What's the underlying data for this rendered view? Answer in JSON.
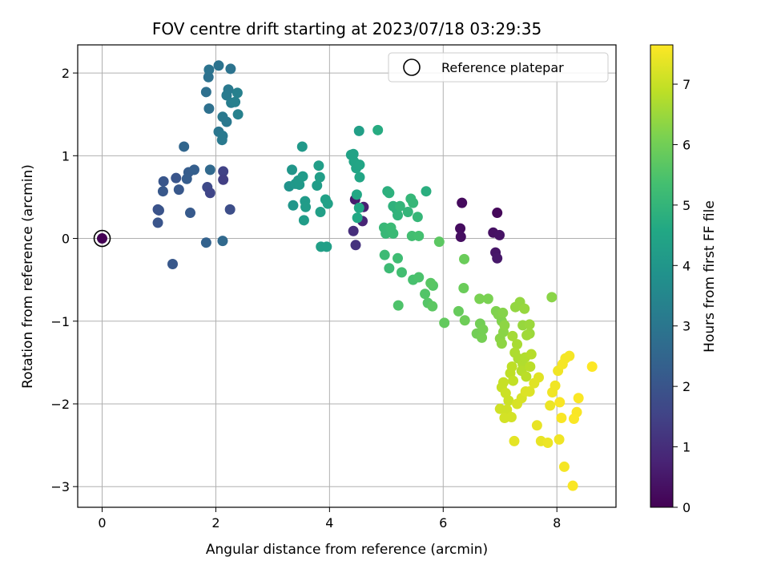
{
  "chart_data": {
    "type": "scatter",
    "title": "FOV centre drift starting at 2023/07/18 03:29:35",
    "xlabel": "Angular distance from reference (arcmin)",
    "ylabel": "Rotation from reference (arcmin)",
    "xlim": [
      -0.43,
      9.04
    ],
    "ylim": [
      -3.25,
      2.34
    ],
    "xticks": [
      0,
      2,
      4,
      6,
      8
    ],
    "yticks": [
      -3,
      -2,
      -1,
      0,
      1,
      2
    ],
    "grid": true,
    "legend": {
      "position": "top-right",
      "entries": [
        "Reference platepar"
      ]
    },
    "reference_point": {
      "x": 0,
      "y": 0
    },
    "colorbar": {
      "label": "Hours from first FF file",
      "range": [
        0,
        7.65
      ],
      "ticks": [
        0,
        1,
        2,
        3,
        4,
        5,
        6,
        7
      ],
      "colormap": "viridis"
    },
    "points": [
      {
        "x": 0.0,
        "y": 0.0,
        "c": 0.0
      },
      {
        "x": 6.33,
        "y": 0.43,
        "c": 0.2
      },
      {
        "x": 6.95,
        "y": 0.31,
        "c": 0.15
      },
      {
        "x": 6.3,
        "y": 0.12,
        "c": 0.25
      },
      {
        "x": 6.31,
        "y": 0.02,
        "c": 0.3
      },
      {
        "x": 6.88,
        "y": 0.07,
        "c": 0.35
      },
      {
        "x": 6.99,
        "y": 0.04,
        "c": 0.4
      },
      {
        "x": 6.92,
        "y": -0.17,
        "c": 0.45
      },
      {
        "x": 6.95,
        "y": -0.24,
        "c": 0.5
      },
      {
        "x": 4.45,
        "y": 0.47,
        "c": 0.6
      },
      {
        "x": 4.6,
        "y": 0.38,
        "c": 0.7
      },
      {
        "x": 4.58,
        "y": 0.21,
        "c": 0.8
      },
      {
        "x": 4.42,
        "y": 0.09,
        "c": 1.0
      },
      {
        "x": 4.46,
        "y": -0.08,
        "c": 1.1
      },
      {
        "x": 0.98,
        "y": 0.35,
        "c": 1.9
      },
      {
        "x": 1.0,
        "y": 0.34,
        "c": 1.95
      },
      {
        "x": 0.98,
        "y": 0.19,
        "c": 2.0
      },
      {
        "x": 1.08,
        "y": 0.69,
        "c": 2.05
      },
      {
        "x": 1.07,
        "y": 0.57,
        "c": 2.1
      },
      {
        "x": 1.3,
        "y": 0.73,
        "c": 2.0
      },
      {
        "x": 1.35,
        "y": 0.59,
        "c": 2.1
      },
      {
        "x": 1.24,
        "y": -0.31,
        "c": 2.1
      },
      {
        "x": 1.55,
        "y": 0.31,
        "c": 2.15
      },
      {
        "x": 1.52,
        "y": 0.8,
        "c": 2.2
      },
      {
        "x": 1.49,
        "y": 0.72,
        "c": 2.25
      },
      {
        "x": 1.62,
        "y": 0.83,
        "c": 2.3
      },
      {
        "x": 1.44,
        "y": 1.11,
        "c": 2.5
      },
      {
        "x": 1.83,
        "y": -0.05,
        "c": 2.4
      },
      {
        "x": 1.85,
        "y": 0.62,
        "c": 1.7
      },
      {
        "x": 1.9,
        "y": 0.55,
        "c": 1.6
      },
      {
        "x": 2.13,
        "y": 0.81,
        "c": 1.5
      },
      {
        "x": 2.13,
        "y": 0.71,
        "c": 1.4
      },
      {
        "x": 2.25,
        "y": 0.35,
        "c": 1.8
      },
      {
        "x": 2.12,
        "y": -0.03,
        "c": 2.6
      },
      {
        "x": 1.9,
        "y": 0.83,
        "c": 2.6
      },
      {
        "x": 1.88,
        "y": 1.57,
        "c": 2.8
      },
      {
        "x": 1.83,
        "y": 1.77,
        "c": 2.8
      },
      {
        "x": 1.87,
        "y": 1.95,
        "c": 2.85
      },
      {
        "x": 1.88,
        "y": 2.04,
        "c": 2.9
      },
      {
        "x": 2.05,
        "y": 2.09,
        "c": 2.9
      },
      {
        "x": 2.26,
        "y": 2.05,
        "c": 2.9
      },
      {
        "x": 2.05,
        "y": 1.29,
        "c": 3.0
      },
      {
        "x": 2.12,
        "y": 1.24,
        "c": 3.1
      },
      {
        "x": 2.11,
        "y": 1.19,
        "c": 3.1
      },
      {
        "x": 2.12,
        "y": 1.47,
        "c": 3.1
      },
      {
        "x": 2.19,
        "y": 1.41,
        "c": 3.05
      },
      {
        "x": 2.22,
        "y": 1.8,
        "c": 3.1
      },
      {
        "x": 2.19,
        "y": 1.73,
        "c": 3.15
      },
      {
        "x": 2.27,
        "y": 1.64,
        "c": 3.2
      },
      {
        "x": 2.34,
        "y": 1.65,
        "c": 3.3
      },
      {
        "x": 2.38,
        "y": 1.76,
        "c": 3.3
      },
      {
        "x": 2.39,
        "y": 1.5,
        "c": 3.35
      },
      {
        "x": 3.29,
        "y": 0.63,
        "c": 3.9
      },
      {
        "x": 3.34,
        "y": 0.83,
        "c": 4.0
      },
      {
        "x": 3.36,
        "y": 0.4,
        "c": 4.0
      },
      {
        "x": 3.4,
        "y": 0.66,
        "c": 4.05
      },
      {
        "x": 3.45,
        "y": 0.7,
        "c": 4.1
      },
      {
        "x": 3.47,
        "y": 0.65,
        "c": 4.1
      },
      {
        "x": 3.52,
        "y": 1.11,
        "c": 4.1
      },
      {
        "x": 3.53,
        "y": 0.75,
        "c": 4.15
      },
      {
        "x": 3.57,
        "y": 0.45,
        "c": 4.15
      },
      {
        "x": 3.58,
        "y": 0.38,
        "c": 4.2
      },
      {
        "x": 3.55,
        "y": 0.22,
        "c": 4.2
      },
      {
        "x": 3.78,
        "y": 0.64,
        "c": 4.2
      },
      {
        "x": 3.81,
        "y": 0.88,
        "c": 4.25
      },
      {
        "x": 3.83,
        "y": 0.74,
        "c": 4.25
      },
      {
        "x": 3.84,
        "y": 0.32,
        "c": 4.3
      },
      {
        "x": 3.85,
        "y": -0.1,
        "c": 4.3
      },
      {
        "x": 3.93,
        "y": 0.47,
        "c": 4.35
      },
      {
        "x": 3.97,
        "y": 0.42,
        "c": 4.35
      },
      {
        "x": 3.95,
        "y": -0.1,
        "c": 4.3
      },
      {
        "x": 4.38,
        "y": 1.01,
        "c": 4.4
      },
      {
        "x": 4.43,
        "y": 0.93,
        "c": 4.45
      },
      {
        "x": 4.47,
        "y": 0.85,
        "c": 4.45
      },
      {
        "x": 4.53,
        "y": 0.89,
        "c": 4.5
      },
      {
        "x": 4.53,
        "y": 0.74,
        "c": 4.5
      },
      {
        "x": 4.48,
        "y": 0.53,
        "c": 4.55
      },
      {
        "x": 4.52,
        "y": 0.37,
        "c": 4.55
      },
      {
        "x": 4.49,
        "y": 0.25,
        "c": 4.6
      },
      {
        "x": 4.52,
        "y": 1.3,
        "c": 4.3
      },
      {
        "x": 4.85,
        "y": 1.31,
        "c": 4.7
      },
      {
        "x": 4.42,
        "y": 1.02,
        "c": 4.4
      },
      {
        "x": 5.02,
        "y": 0.57,
        "c": 4.8
      },
      {
        "x": 5.05,
        "y": 0.55,
        "c": 4.85
      },
      {
        "x": 5.12,
        "y": 0.39,
        "c": 4.9
      },
      {
        "x": 5.18,
        "y": 0.35,
        "c": 4.9
      },
      {
        "x": 5.2,
        "y": 0.28,
        "c": 4.95
      },
      {
        "x": 5.24,
        "y": 0.39,
        "c": 5.0
      },
      {
        "x": 5.38,
        "y": 0.32,
        "c": 5.0
      },
      {
        "x": 5.43,
        "y": 0.48,
        "c": 5.05
      },
      {
        "x": 5.47,
        "y": 0.43,
        "c": 5.05
      },
      {
        "x": 5.55,
        "y": 0.26,
        "c": 5.05
      },
      {
        "x": 5.7,
        "y": 0.57,
        "c": 4.8
      },
      {
        "x": 4.96,
        "y": 0.13,
        "c": 5.1
      },
      {
        "x": 4.99,
        "y": 0.06,
        "c": 5.1
      },
      {
        "x": 5.08,
        "y": 0.13,
        "c": 5.15
      },
      {
        "x": 5.12,
        "y": 0.06,
        "c": 5.15
      },
      {
        "x": 4.97,
        "y": -0.2,
        "c": 5.2
      },
      {
        "x": 5.05,
        "y": -0.36,
        "c": 5.2
      },
      {
        "x": 5.2,
        "y": -0.24,
        "c": 5.25
      },
      {
        "x": 5.27,
        "y": -0.41,
        "c": 5.3
      },
      {
        "x": 5.45,
        "y": 0.03,
        "c": 5.3
      },
      {
        "x": 5.57,
        "y": 0.03,
        "c": 5.35
      },
      {
        "x": 5.47,
        "y": -0.5,
        "c": 5.4
      },
      {
        "x": 5.57,
        "y": -0.47,
        "c": 5.45
      },
      {
        "x": 5.21,
        "y": -0.81,
        "c": 5.5
      },
      {
        "x": 5.68,
        "y": -0.67,
        "c": 5.55
      },
      {
        "x": 5.73,
        "y": -0.78,
        "c": 5.6
      },
      {
        "x": 5.82,
        "y": -0.57,
        "c": 5.6
      },
      {
        "x": 5.78,
        "y": -0.54,
        "c": 5.65
      },
      {
        "x": 5.81,
        "y": -0.82,
        "c": 5.7
      },
      {
        "x": 5.93,
        "y": -0.04,
        "c": 5.7
      },
      {
        "x": 6.02,
        "y": -1.02,
        "c": 5.8
      },
      {
        "x": 6.27,
        "y": -0.88,
        "c": 5.85
      },
      {
        "x": 6.37,
        "y": -0.25,
        "c": 5.9
      },
      {
        "x": 6.36,
        "y": -0.6,
        "c": 5.9
      },
      {
        "x": 6.38,
        "y": -0.99,
        "c": 5.95
      },
      {
        "x": 6.59,
        "y": -1.15,
        "c": 6.0
      },
      {
        "x": 6.65,
        "y": -1.03,
        "c": 6.0
      },
      {
        "x": 6.68,
        "y": -1.2,
        "c": 6.05
      },
      {
        "x": 6.7,
        "y": -1.1,
        "c": 6.05
      },
      {
        "x": 6.64,
        "y": -0.73,
        "c": 6.1
      },
      {
        "x": 6.79,
        "y": -0.73,
        "c": 6.1
      },
      {
        "x": 6.93,
        "y": -0.88,
        "c": 6.15
      },
      {
        "x": 6.97,
        "y": -0.92,
        "c": 6.2
      },
      {
        "x": 7.03,
        "y": -1.0,
        "c": 6.2
      },
      {
        "x": 7.05,
        "y": -0.9,
        "c": 6.25
      },
      {
        "x": 7.06,
        "y": -1.13,
        "c": 6.3
      },
      {
        "x": 7.0,
        "y": -1.21,
        "c": 6.3
      },
      {
        "x": 7.03,
        "y": -1.27,
        "c": 6.35
      },
      {
        "x": 7.08,
        "y": -1.05,
        "c": 6.35
      },
      {
        "x": 7.27,
        "y": -0.83,
        "c": 6.4
      },
      {
        "x": 7.35,
        "y": -0.77,
        "c": 6.4
      },
      {
        "x": 7.43,
        "y": -0.85,
        "c": 6.45
      },
      {
        "x": 7.4,
        "y": -1.05,
        "c": 6.45
      },
      {
        "x": 7.52,
        "y": -1.04,
        "c": 6.5
      },
      {
        "x": 7.52,
        "y": -1.15,
        "c": 6.5
      },
      {
        "x": 7.47,
        "y": -1.17,
        "c": 6.55
      },
      {
        "x": 7.91,
        "y": -0.71,
        "c": 6.3
      },
      {
        "x": 7.22,
        "y": -1.18,
        "c": 6.6
      },
      {
        "x": 7.3,
        "y": -1.28,
        "c": 6.65
      },
      {
        "x": 7.26,
        "y": -1.38,
        "c": 6.7
      },
      {
        "x": 7.32,
        "y": -1.45,
        "c": 6.7
      },
      {
        "x": 7.4,
        "y": -1.52,
        "c": 6.75
      },
      {
        "x": 7.44,
        "y": -1.44,
        "c": 6.75
      },
      {
        "x": 7.55,
        "y": -1.4,
        "c": 6.8
      },
      {
        "x": 7.38,
        "y": -1.6,
        "c": 6.8
      },
      {
        "x": 7.46,
        "y": -1.67,
        "c": 6.85
      },
      {
        "x": 7.53,
        "y": -1.55,
        "c": 6.85
      },
      {
        "x": 7.21,
        "y": -1.55,
        "c": 6.9
      },
      {
        "x": 7.18,
        "y": -1.63,
        "c": 6.9
      },
      {
        "x": 7.23,
        "y": -1.72,
        "c": 6.95
      },
      {
        "x": 7.06,
        "y": -1.74,
        "c": 7.0
      },
      {
        "x": 7.03,
        "y": -1.8,
        "c": 7.0
      },
      {
        "x": 7.1,
        "y": -1.87,
        "c": 7.05
      },
      {
        "x": 7.15,
        "y": -1.96,
        "c": 7.05
      },
      {
        "x": 7.0,
        "y": -2.06,
        "c": 7.1
      },
      {
        "x": 7.12,
        "y": -2.07,
        "c": 7.1
      },
      {
        "x": 7.08,
        "y": -2.17,
        "c": 7.15
      },
      {
        "x": 7.2,
        "y": -2.16,
        "c": 7.15
      },
      {
        "x": 7.3,
        "y": -2.0,
        "c": 7.2
      },
      {
        "x": 7.38,
        "y": -1.93,
        "c": 7.2
      },
      {
        "x": 7.45,
        "y": -1.85,
        "c": 7.25
      },
      {
        "x": 7.52,
        "y": -1.85,
        "c": 7.25
      },
      {
        "x": 7.6,
        "y": -1.75,
        "c": 7.3
      },
      {
        "x": 7.68,
        "y": -1.68,
        "c": 7.3
      },
      {
        "x": 7.25,
        "y": -2.45,
        "c": 7.35
      },
      {
        "x": 7.65,
        "y": -2.26,
        "c": 7.4
      },
      {
        "x": 7.72,
        "y": -2.45,
        "c": 7.4
      },
      {
        "x": 7.84,
        "y": -2.47,
        "c": 7.45
      },
      {
        "x": 7.88,
        "y": -2.02,
        "c": 7.45
      },
      {
        "x": 7.92,
        "y": -1.86,
        "c": 7.5
      },
      {
        "x": 7.97,
        "y": -1.78,
        "c": 7.5
      },
      {
        "x": 8.02,
        "y": -1.6,
        "c": 7.5
      },
      {
        "x": 8.1,
        "y": -1.52,
        "c": 7.55
      },
      {
        "x": 8.15,
        "y": -1.45,
        "c": 7.55
      },
      {
        "x": 8.22,
        "y": -1.42,
        "c": 7.55
      },
      {
        "x": 8.05,
        "y": -1.98,
        "c": 7.6
      },
      {
        "x": 8.04,
        "y": -2.43,
        "c": 7.5
      },
      {
        "x": 8.13,
        "y": -2.76,
        "c": 7.55
      },
      {
        "x": 8.28,
        "y": -2.99,
        "c": 7.6
      },
      {
        "x": 8.08,
        "y": -2.17,
        "c": 7.6
      },
      {
        "x": 8.35,
        "y": -2.1,
        "c": 7.6
      },
      {
        "x": 8.38,
        "y": -1.93,
        "c": 7.62
      },
      {
        "x": 8.3,
        "y": -2.18,
        "c": 7.62
      },
      {
        "x": 8.62,
        "y": -1.55,
        "c": 7.65
      }
    ]
  }
}
